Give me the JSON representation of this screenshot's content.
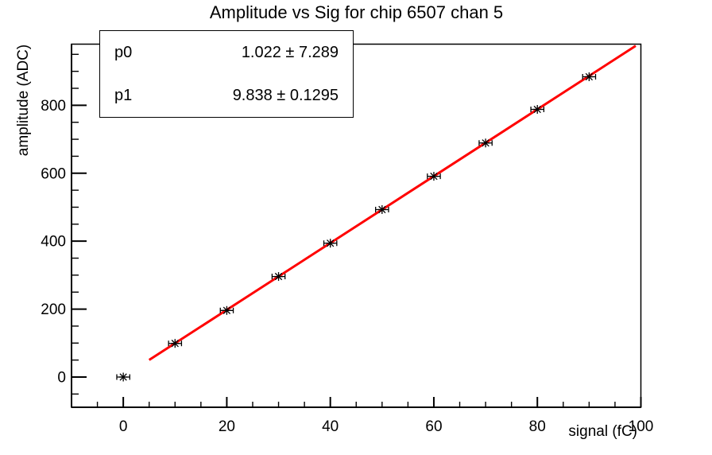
{
  "title": "Amplitude vs Sig for chip 6507 chan 5",
  "stats_box": {
    "rows": [
      {
        "param": "p0",
        "value": "1.022 ± 7.289"
      },
      {
        "param": "p1",
        "value": "9.838 ± 0.1295"
      }
    ]
  },
  "colors": {
    "background": "#ffffff",
    "frame": "#000000",
    "marker": "#000000",
    "fit_line": "#ff0000",
    "text": "#000000"
  },
  "chart_data": {
    "type": "scatter",
    "title": "Amplitude vs Sig for chip 6507 chan 5",
    "xlabel": "signal (fC)",
    "ylabel": "amplitude (ADC)",
    "xlim": [
      -10,
      100
    ],
    "ylim": [
      -89,
      980
    ],
    "grid": false,
    "legend_position": "none",
    "x_major_ticks": [
      0,
      20,
      40,
      60,
      80,
      100
    ],
    "x_major_tick_labels": [
      "0",
      "20",
      "40",
      "60",
      "80",
      "100"
    ],
    "x_minor_step": 5,
    "y_major_ticks": [
      0,
      200,
      400,
      600,
      800
    ],
    "y_major_tick_labels": [
      "0",
      "200",
      "400",
      "600",
      "800"
    ],
    "y_minor_step": 50,
    "series": [
      {
        "name": "data-points",
        "type": "scatter",
        "marker": "star",
        "color": "#000000",
        "x": [
          0,
          10,
          20,
          30,
          40,
          50,
          60,
          70,
          80,
          90
        ],
        "y": [
          0,
          99,
          196,
          296,
          394,
          493,
          591,
          689,
          788,
          884
        ],
        "x_err": 1.25
      },
      {
        "name": "linear-fit",
        "type": "line",
        "color": "#ff0000",
        "fit": {
          "p0": 1.022,
          "p1": 9.838,
          "x_start": 5.0,
          "x_end": 99.0
        }
      }
    ],
    "fit_params": [
      {
        "name": "p0",
        "value": 1.022,
        "error": 7.289
      },
      {
        "name": "p1",
        "value": 9.838,
        "error": 0.1295
      }
    ]
  }
}
